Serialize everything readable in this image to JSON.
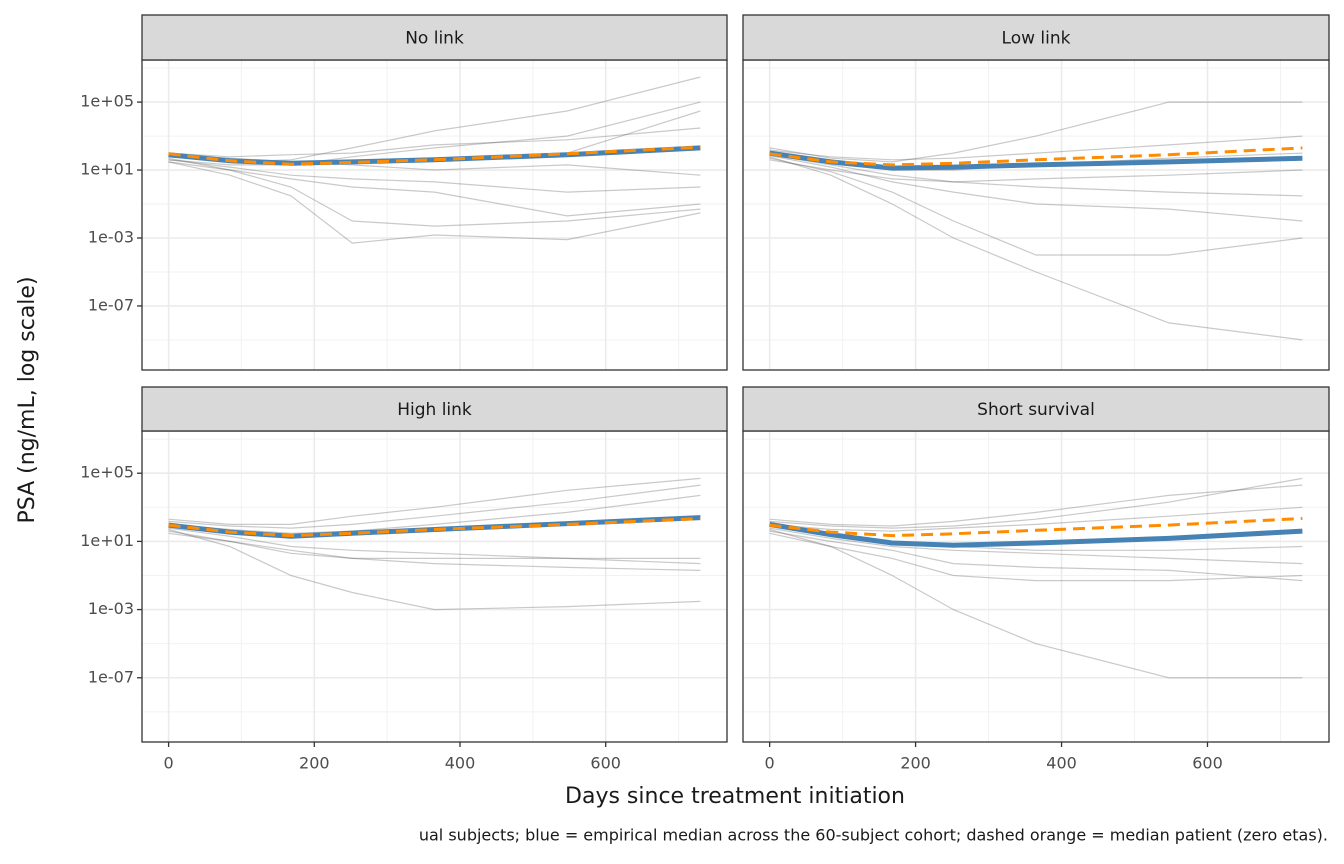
{
  "chart_data": {
    "type": "line",
    "yscale": "log",
    "grid": true,
    "xlabel": "Days since treatment initiation",
    "ylabel": "PSA (ng/mL, log scale)",
    "caption": "ual subjects; blue = empirical median across the 60-subject cohort; dashed orange = median patient (zero etas).",
    "x": [
      0,
      84,
      168,
      252,
      365,
      547,
      730
    ],
    "xlim": [
      -36.5,
      766.5
    ],
    "xticks": [
      0,
      200,
      400,
      600
    ],
    "ylim": [
      1.7e-11,
      30000000.0
    ],
    "yticks": [
      {
        "value": 100000,
        "label": "1e+05"
      },
      {
        "value": 10,
        "label": "1e+01"
      },
      {
        "value": 0.001,
        "label": "1e-03"
      },
      {
        "value": 1e-07,
        "label": "1e-07"
      }
    ],
    "subject_color": "#4d4d4d",
    "panels": [
      {
        "title": "No link",
        "subjects": [
          [
            60,
            30,
            40,
            200,
            2000,
            30000,
            3000000
          ],
          [
            40,
            20,
            20,
            60,
            200,
            1000,
            100000
          ],
          [
            50,
            10,
            1,
            0.01,
            0.005,
            0.01,
            0.05
          ],
          [
            30,
            5,
            0.3,
            0.0005,
            0.0015,
            0.0008,
            0.03
          ],
          [
            70,
            50,
            30,
            20,
            10,
            20,
            5
          ],
          [
            100,
            60,
            80,
            100,
            300,
            600,
            3000
          ],
          [
            40,
            15,
            5,
            3,
            2,
            0.5,
            1
          ],
          [
            80,
            40,
            30,
            30,
            50,
            100,
            30000
          ],
          [
            30,
            10,
            3,
            1,
            0.5,
            0.02,
            0.1
          ]
        ],
        "series": [
          {
            "color": "#4682b4",
            "style": "solid",
            "values": [
              80,
              35,
              25,
              30,
              40,
              80,
              200
            ]
          },
          {
            "color": "#ff8c00",
            "style": "dashed",
            "values": [
              90,
              35,
              22,
              28,
              40,
              90,
              220
            ]
          }
        ]
      },
      {
        "title": "Low link",
        "subjects": [
          [
            200,
            50,
            30,
            100,
            1000,
            100000,
            100000
          ],
          [
            60,
            5,
            0.1,
            0.001,
            1e-05,
            1e-08,
            1e-09
          ],
          [
            50,
            8,
            0.5,
            0.01,
            0.0001,
            0.0001,
            0.001
          ],
          [
            80,
            20,
            5,
            2,
            1,
            0.5,
            0.3
          ],
          [
            150,
            60,
            40,
            50,
            100,
            300,
            1000
          ],
          [
            40,
            10,
            3,
            2,
            3,
            5,
            10
          ],
          [
            100,
            30,
            10,
            10,
            20,
            50,
            100
          ],
          [
            70,
            15,
            2,
            0.5,
            0.1,
            0.05,
            0.01
          ]
        ],
        "series": [
          {
            "color": "#4682b4",
            "style": "solid",
            "values": [
              100,
              30,
              13,
              15,
              20,
              30,
              50
            ]
          },
          {
            "color": "#ff8c00",
            "style": "dashed",
            "values": [
              90,
              30,
              20,
              25,
              40,
              80,
              200
            ]
          }
        ]
      },
      {
        "title": "High link",
        "subjects": [
          [
            200,
            100,
            100,
            300,
            1000,
            10000,
            50000
          ],
          [
            80,
            30,
            20,
            40,
            100,
            500,
            5000
          ],
          [
            50,
            5,
            0.1,
            0.01,
            0.001,
            0.0015,
            0.003
          ],
          [
            30,
            10,
            3,
            1,
            1,
            1,
            1
          ],
          [
            100,
            50,
            30,
            40,
            60,
            100,
            300
          ],
          [
            60,
            20,
            5,
            3,
            2,
            1,
            0.5
          ],
          [
            150,
            80,
            60,
            100,
            300,
            2000,
            20000
          ],
          [
            40,
            10,
            2,
            1,
            0.5,
            0.3,
            0.2
          ]
        ],
        "series": [
          {
            "color": "#4682b4",
            "style": "solid",
            "values": [
              90,
              35,
              20,
              30,
              50,
              110,
              250
            ]
          },
          {
            "color": "#ff8c00",
            "style": "dashed",
            "values": [
              90,
              35,
              22,
              30,
              50,
              100,
              220
            ]
          }
        ]
      },
      {
        "title": "Short survival",
        "subjects": [
          [
            150,
            80,
            60,
            80,
            200,
            2000,
            50000
          ],
          [
            80,
            30,
            10,
            5,
            3,
            3,
            5
          ],
          [
            50,
            5,
            0.1,
            0.001,
            1e-05,
            1e-07,
            1e-07
          ],
          [
            30,
            5,
            1,
            0.1,
            0.05,
            0.05,
            0.1
          ],
          [
            100,
            50,
            40,
            60,
            100,
            300,
            1000
          ],
          [
            60,
            15,
            5,
            3,
            2,
            1,
            0.5
          ],
          [
            200,
            100,
            80,
            150,
            500,
            5000,
            20000
          ],
          [
            40,
            10,
            3,
            0.5,
            0.3,
            0.2,
            0.05
          ]
        ],
        "series": [
          {
            "color": "#4682b4",
            "style": "solid",
            "values": [
              100,
              25,
              8,
              6,
              8,
              15,
              40
            ]
          },
          {
            "color": "#ff8c00",
            "style": "dashed",
            "values": [
              90,
              35,
              22,
              28,
              45,
              90,
              220
            ]
          }
        ]
      }
    ]
  }
}
